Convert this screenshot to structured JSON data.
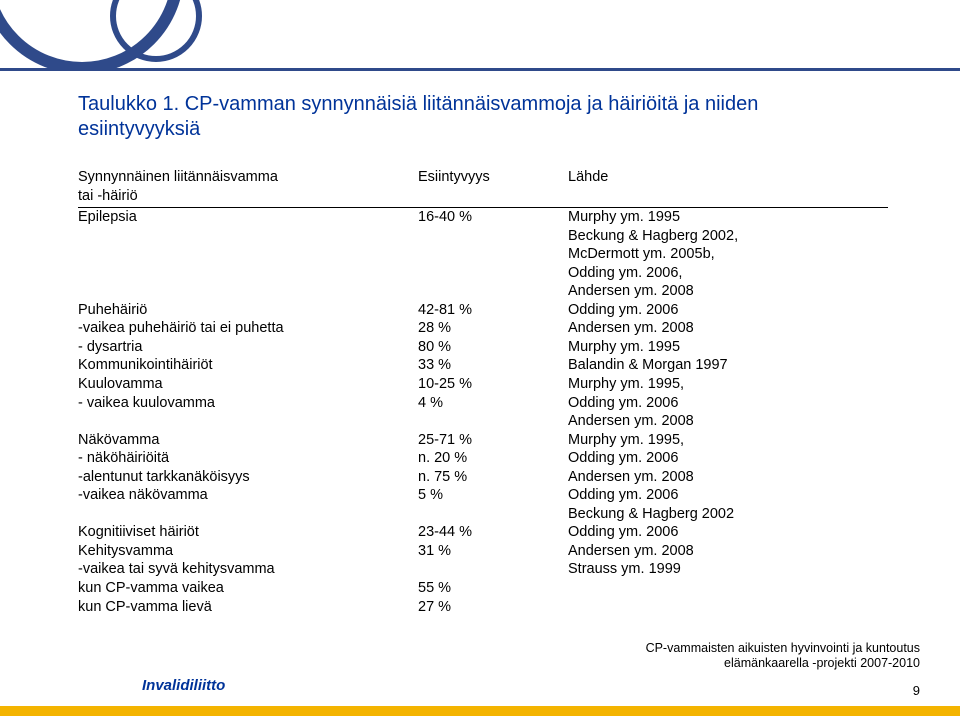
{
  "colors": {
    "title": "#003399",
    "rule": "#2f4a8a",
    "yellow": "#f4b400",
    "text": "#000000",
    "background": "#ffffff"
  },
  "title_line1": "Taulukko 1. CP-vamman synnynnäisiä liitännäisvammoja ja häiriöitä ja niiden",
  "title_line2": "esiintyvyyksiä",
  "header": {
    "c1a": "Synnynnäinen liitännäisvamma",
    "c1b": "tai -häiriö",
    "c2": "Esiintyvyys",
    "c3": "Lähde"
  },
  "rows": [
    {
      "c1": "Epilepsia",
      "c2": "16-40 %",
      "c3": "Murphy ym. 1995"
    },
    {
      "c1": "",
      "c2": "",
      "c3": "Beckung & Hagberg 2002,"
    },
    {
      "c1": "",
      "c2": "",
      "c3": "McDermott ym. 2005b,"
    },
    {
      "c1": "",
      "c2": "",
      "c3": "Odding ym. 2006,"
    },
    {
      "c1": "",
      "c2": "",
      "c3": "Andersen ym. 2008"
    },
    {
      "c1": "Puhehäiriö",
      "c2": "42-81 %",
      "c3": "Odding ym. 2006"
    },
    {
      "c1": " -vaikea puhehäiriö tai ei puhetta",
      "c2": "28 %",
      "c3": "Andersen ym. 2008",
      "indent": 1
    },
    {
      "c1": "- dysartria",
      "c2": "80 %",
      "c3": "Murphy ym. 1995"
    },
    {
      "c1": "Kommunikointihäiriöt",
      "c2": "33 %",
      "c3": "Balandin & Morgan 1997"
    },
    {
      "c1": "Kuulovamma",
      "c2": "10-25 %",
      "c3": "Murphy ym. 1995,"
    },
    {
      "c1": "- vaikea kuulovamma",
      "c2": "4 %",
      "c3": "Odding ym. 2006"
    },
    {
      "c1": "",
      "c2": "",
      "c3": "Andersen ym. 2008"
    },
    {
      "c1": "Näkövamma",
      "c2": "25-71 %",
      "c3": "Murphy ym. 1995,"
    },
    {
      "c1": " - näköhäiriöitä",
      "c2": "n. 20 %",
      "c3": "Odding ym. 2006",
      "indent": 1
    },
    {
      "c1": " -alentunut tarkkanäköisyys",
      "c2": "n. 75 %",
      "c3": "Andersen ym. 2008",
      "indent": 1
    },
    {
      "c1": " -vaikea näkövamma",
      "c2": "5 %",
      "c3": "Odding ym. 2006",
      "indent": 1
    },
    {
      "c1": "",
      "c2": "",
      "c3": "Beckung & Hagberg 2002"
    },
    {
      "c1": "Kognitiiviset häiriöt",
      "c2": "23-44 %",
      "c3": "Odding ym. 2006"
    },
    {
      "c1": "Kehitysvamma",
      "c2": "31 %",
      "c3": "Andersen ym. 2008"
    },
    {
      "c1": " -vaikea tai syvä kehitysvamma",
      "c2": "",
      "c3": "Strauss ym. 1999",
      "indent": 1
    },
    {
      "c1": "   kun CP-vamma vaikea",
      "c2": "55 %",
      "c3": "",
      "indent": 2
    },
    {
      "c1": "   kun CP-vamma lievä",
      "c2": "27 %",
      "c3": "",
      "indent": 2
    }
  ],
  "footer_right_l1": "CP-vammaisten aikuisten hyvinvointi ja kuntoutus",
  "footer_right_l2": "elämänkaarella -projekti 2007-2010",
  "footer_left": "Invalidiliitto",
  "page_num": "9"
}
